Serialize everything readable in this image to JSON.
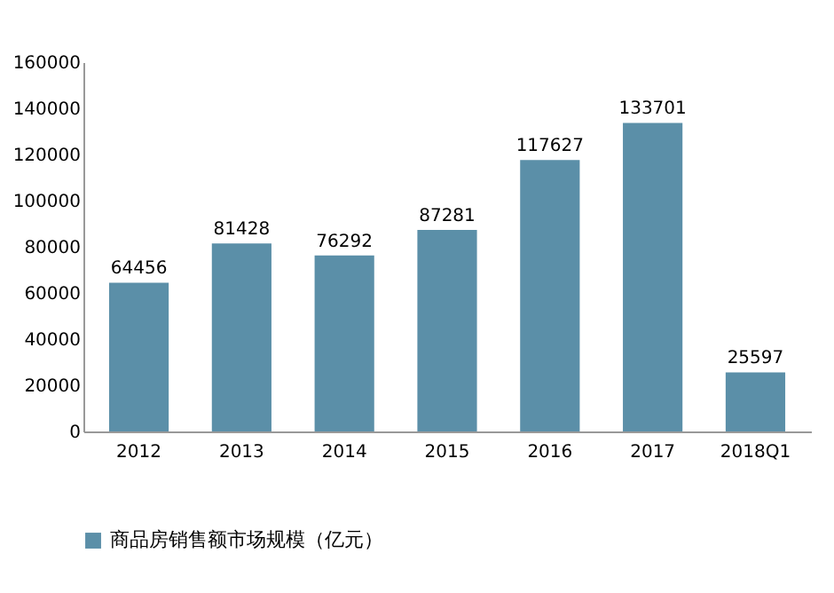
{
  "chart_data": {
    "type": "bar",
    "categories": [
      "2012",
      "2013",
      "2014",
      "2015",
      "2016",
      "2017",
      "2018Q1"
    ],
    "series": [
      {
        "name": "商品房销售额市场规模（亿元）",
        "color": "#5b8fa8",
        "values": [
          64456,
          81428,
          76292,
          87281,
          117627,
          133701,
          25597
        ]
      }
    ],
    "ylim": [
      0,
      160000
    ],
    "yticks": [
      0,
      20000,
      40000,
      60000,
      80000,
      100000,
      120000,
      140000,
      160000
    ],
    "grid": false,
    "data_labels": true,
    "legend": "bottom"
  }
}
